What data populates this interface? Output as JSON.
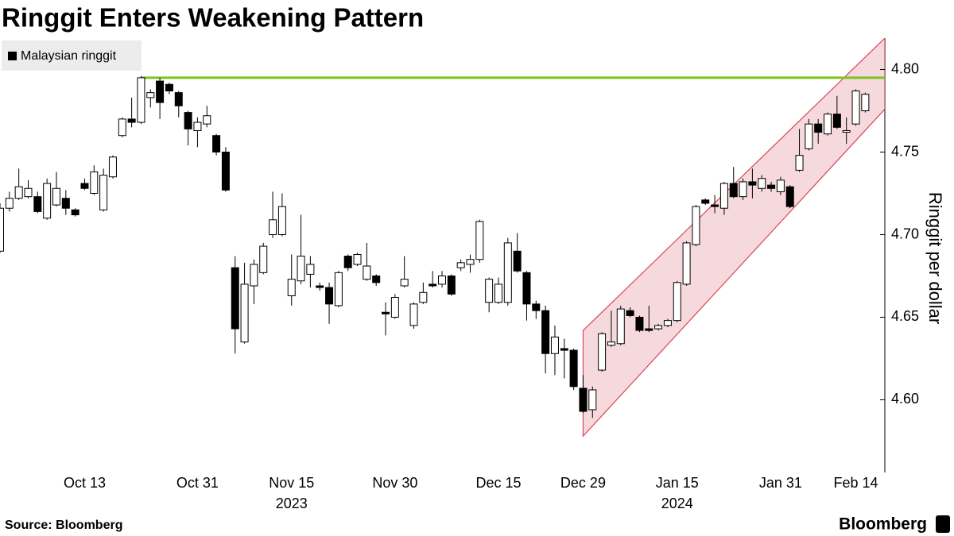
{
  "chart_data": {
    "type": "candlestick",
    "title": "Ringgit Enters Weakening Pattern",
    "series_name": "Malaysian ringgit",
    "y_axis_label": "Ringgit per dollar",
    "source": "Source: Bloomberg",
    "brand": "Bloomberg",
    "up_color": "#ffffff",
    "down_color": "#000000",
    "categories": [
      null,
      null,
      null,
      null,
      null,
      null,
      null,
      null,
      null,
      "Oct 13",
      null,
      null,
      null,
      null,
      null,
      null,
      null,
      null,
      null,
      null,
      null,
      "Oct 31",
      null,
      null,
      null,
      null,
      null,
      null,
      null,
      null,
      null,
      "Nov 15",
      null,
      null,
      null,
      null,
      null,
      null,
      null,
      null,
      null,
      null,
      "Nov 30",
      null,
      null,
      null,
      null,
      null,
      null,
      null,
      null,
      null,
      null,
      "Dec 15",
      null,
      null,
      null,
      null,
      null,
      null,
      null,
      null,
      "Dec 29",
      null,
      null,
      null,
      null,
      null,
      null,
      null,
      null,
      null,
      "Jan 15",
      null,
      null,
      null,
      null,
      null,
      null,
      null,
      null,
      null,
      null,
      "Jan 31",
      null,
      null,
      null,
      null,
      null,
      null,
      null,
      "Feb 14",
      null
    ],
    "year_labels": [
      {
        "label": "2023",
        "under": "Nov 15"
      },
      {
        "label": "2024",
        "under": "Jan 15"
      }
    ],
    "open": [
      4.69,
      4.716,
      4.722,
      4.723,
      4.723,
      4.71,
      4.718,
      4.722,
      4.715,
      4.731,
      4.725,
      4.715,
      4.735,
      4.76,
      4.77,
      4.768,
      4.783,
      4.793,
      4.791,
      4.786,
      4.774,
      4.763,
      4.767,
      4.76,
      4.75,
      4.68,
      4.635,
      4.669,
      4.677,
      4.7,
      4.7,
      4.663,
      4.672,
      4.676,
      4.669,
      4.668,
      4.657,
      4.687,
      4.682,
      4.673,
      4.675,
      4.653,
      4.65,
      4.669,
      4.645,
      4.659,
      4.67,
      4.67,
      4.675,
      4.68,
      4.682,
      4.685,
      4.659,
      4.659,
      4.659,
      4.69,
      4.677,
      4.658,
      4.654,
      4.628,
      4.631,
      4.63,
      4.607,
      4.594,
      4.618,
      4.633,
      4.634,
      4.654,
      4.65,
      4.643,
      4.643,
      4.645,
      4.648,
      4.67,
      4.694,
      4.721,
      4.718,
      4.716,
      4.731,
      4.723,
      4.732,
      4.728,
      4.73,
      4.726,
      4.729,
      4.739,
      4.752,
      4.767,
      4.761,
      4.773,
      4.762,
      4.767,
      4.775
    ],
    "high": [
      4.719,
      4.726,
      4.74,
      4.733,
      4.726,
      4.734,
      4.738,
      4.727,
      4.716,
      4.734,
      4.742,
      4.74,
      4.748,
      4.771,
      4.783,
      4.796,
      4.788,
      4.795,
      4.792,
      4.787,
      4.775,
      4.771,
      4.778,
      4.761,
      4.753,
      4.687,
      4.683,
      4.685,
      4.695,
      4.726,
      4.725,
      4.688,
      4.712,
      4.687,
      4.671,
      4.671,
      4.678,
      4.688,
      4.689,
      4.695,
      4.676,
      4.659,
      4.664,
      4.687,
      4.659,
      4.671,
      4.678,
      4.678,
      4.676,
      4.685,
      4.688,
      4.709,
      4.674,
      4.674,
      4.698,
      4.701,
      4.678,
      4.66,
      4.657,
      4.645,
      4.637,
      4.631,
      4.615,
      4.608,
      4.641,
      4.654,
      4.657,
      4.656,
      4.651,
      4.657,
      4.646,
      4.649,
      4.672,
      4.696,
      4.718,
      4.722,
      4.724,
      4.732,
      4.741,
      4.734,
      4.74,
      4.736,
      4.732,
      4.735,
      4.73,
      4.764,
      4.77,
      4.77,
      4.774,
      4.784,
      4.771,
      4.788,
      4.786
    ],
    "low": [
      4.689,
      4.714,
      4.721,
      4.722,
      4.713,
      4.709,
      4.717,
      4.712,
      4.711,
      4.727,
      4.724,
      4.714,
      4.734,
      4.759,
      4.765,
      4.767,
      4.777,
      4.77,
      4.785,
      4.771,
      4.754,
      4.753,
      4.765,
      4.748,
      4.726,
      4.628,
      4.634,
      4.658,
      4.676,
      4.698,
      4.699,
      4.657,
      4.67,
      4.668,
      4.666,
      4.646,
      4.656,
      4.678,
      4.681,
      4.672,
      4.669,
      4.639,
      4.649,
      4.668,
      4.643,
      4.658,
      4.668,
      4.668,
      4.663,
      4.678,
      4.677,
      4.683,
      4.653,
      4.658,
      4.657,
      4.677,
      4.648,
      4.649,
      4.616,
      4.615,
      4.613,
      4.606,
      4.592,
      4.589,
      4.617,
      4.632,
      4.633,
      4.65,
      4.641,
      4.641,
      4.642,
      4.644,
      4.647,
      4.669,
      4.693,
      4.718,
      4.713,
      4.712,
      4.722,
      4.721,
      4.722,
      4.726,
      4.726,
      4.724,
      4.716,
      4.738,
      4.751,
      4.755,
      4.76,
      4.764,
      4.755,
      4.766,
      4.774
    ],
    "close": [
      4.716,
      4.722,
      4.729,
      4.728,
      4.714,
      4.731,
      4.728,
      4.716,
      4.712,
      4.728,
      4.738,
      4.736,
      4.747,
      4.77,
      4.768,
      4.795,
      4.786,
      4.78,
      4.787,
      4.778,
      4.764,
      4.768,
      4.772,
      4.75,
      4.727,
      4.643,
      4.67,
      4.682,
      4.693,
      4.709,
      4.717,
      4.673,
      4.687,
      4.682,
      4.668,
      4.658,
      4.677,
      4.68,
      4.688,
      4.681,
      4.671,
      4.652,
      4.662,
      4.673,
      4.658,
      4.665,
      4.669,
      4.675,
      4.664,
      4.683,
      4.685,
      4.708,
      4.673,
      4.67,
      4.695,
      4.678,
      4.658,
      4.654,
      4.628,
      4.638,
      4.63,
      4.608,
      4.593,
      4.606,
      4.64,
      4.635,
      4.655,
      4.651,
      4.642,
      4.642,
      4.645,
      4.648,
      4.671,
      4.695,
      4.717,
      4.719,
      4.717,
      4.731,
      4.723,
      4.732,
      4.73,
      4.734,
      4.728,
      4.733,
      4.717,
      4.748,
      4.767,
      4.762,
      4.773,
      4.765,
      4.763,
      4.787,
      4.785
    ],
    "resistance": {
      "value": 4.795,
      "start": 15,
      "color": "#7cc520"
    },
    "channel": {
      "start": "Dec 29",
      "upper": [
        4.642,
        4.819
      ],
      "lower": [
        4.578,
        4.776
      ],
      "color": "#d9485a",
      "fill": "#f6d9dc"
    },
    "ylim": [
      4.556,
      4.819
    ],
    "yticks": [
      {
        "value": 4.6,
        "label": "4.60"
      },
      4.65,
      {
        "value": 4.7,
        "label": "4.70"
      },
      4.75,
      {
        "value": 4.8,
        "label": "4.80"
      }
    ]
  }
}
